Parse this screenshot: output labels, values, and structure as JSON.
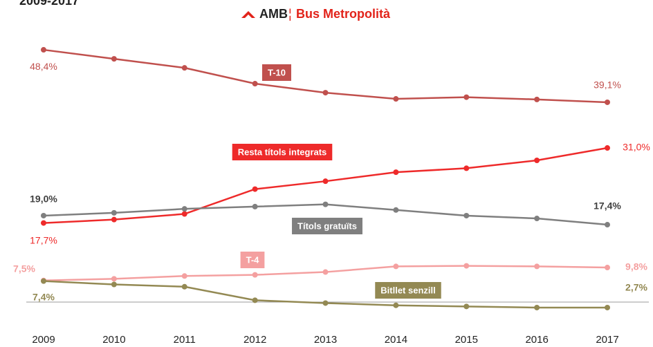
{
  "chart_data": {
    "type": "line",
    "title": "2009-2017",
    "logo": "AMB",
    "logo_text": "Bus Metropolità",
    "categories": [
      "2009",
      "2010",
      "2011",
      "2012",
      "2013",
      "2014",
      "2015",
      "2016",
      "2017"
    ],
    "ylim": [
      0,
      50
    ],
    "series": [
      {
        "name": "T-10",
        "color": "#c0504d",
        "values": [
          48.4,
          46.8,
          45.2,
          42.4,
          40.8,
          39.7,
          40.0,
          39.6,
          39.1
        ],
        "value_labels": [
          "48,4%",
          null,
          null,
          null,
          null,
          null,
          null,
          null,
          "39,1%"
        ]
      },
      {
        "name": "Resta títols integrats",
        "color": "#ee2a2a",
        "values": [
          17.7,
          18.3,
          19.3,
          23.7,
          25.1,
          26.7,
          27.4,
          28.8,
          31.0
        ],
        "value_labels": [
          "17,7%",
          null,
          null,
          null,
          null,
          null,
          null,
          null,
          "31,0%"
        ]
      },
      {
        "name": "Títols gratuïts",
        "color": "#7f7f7f",
        "values": [
          19.0,
          19.5,
          20.2,
          20.6,
          21.0,
          20.0,
          19.0,
          18.5,
          17.4
        ],
        "value_labels": [
          "19,0%",
          null,
          null,
          null,
          null,
          null,
          null,
          null,
          "17,4%"
        ]
      },
      {
        "name": "T-4",
        "color": "#f4a0a0",
        "values": [
          7.5,
          7.8,
          8.3,
          8.5,
          9.0,
          10.0,
          10.1,
          10.0,
          9.8
        ],
        "value_labels": [
          "7,5%",
          null,
          null,
          null,
          null,
          null,
          null,
          null,
          "9,8%"
        ]
      },
      {
        "name": "Bitllet senzill",
        "color": "#938953",
        "values": [
          7.4,
          6.8,
          6.4,
          4.0,
          3.5,
          3.1,
          2.9,
          2.7,
          2.7
        ],
        "value_labels": [
          "7,4%",
          null,
          null,
          null,
          null,
          null,
          null,
          null,
          "2,7%"
        ]
      }
    ]
  }
}
